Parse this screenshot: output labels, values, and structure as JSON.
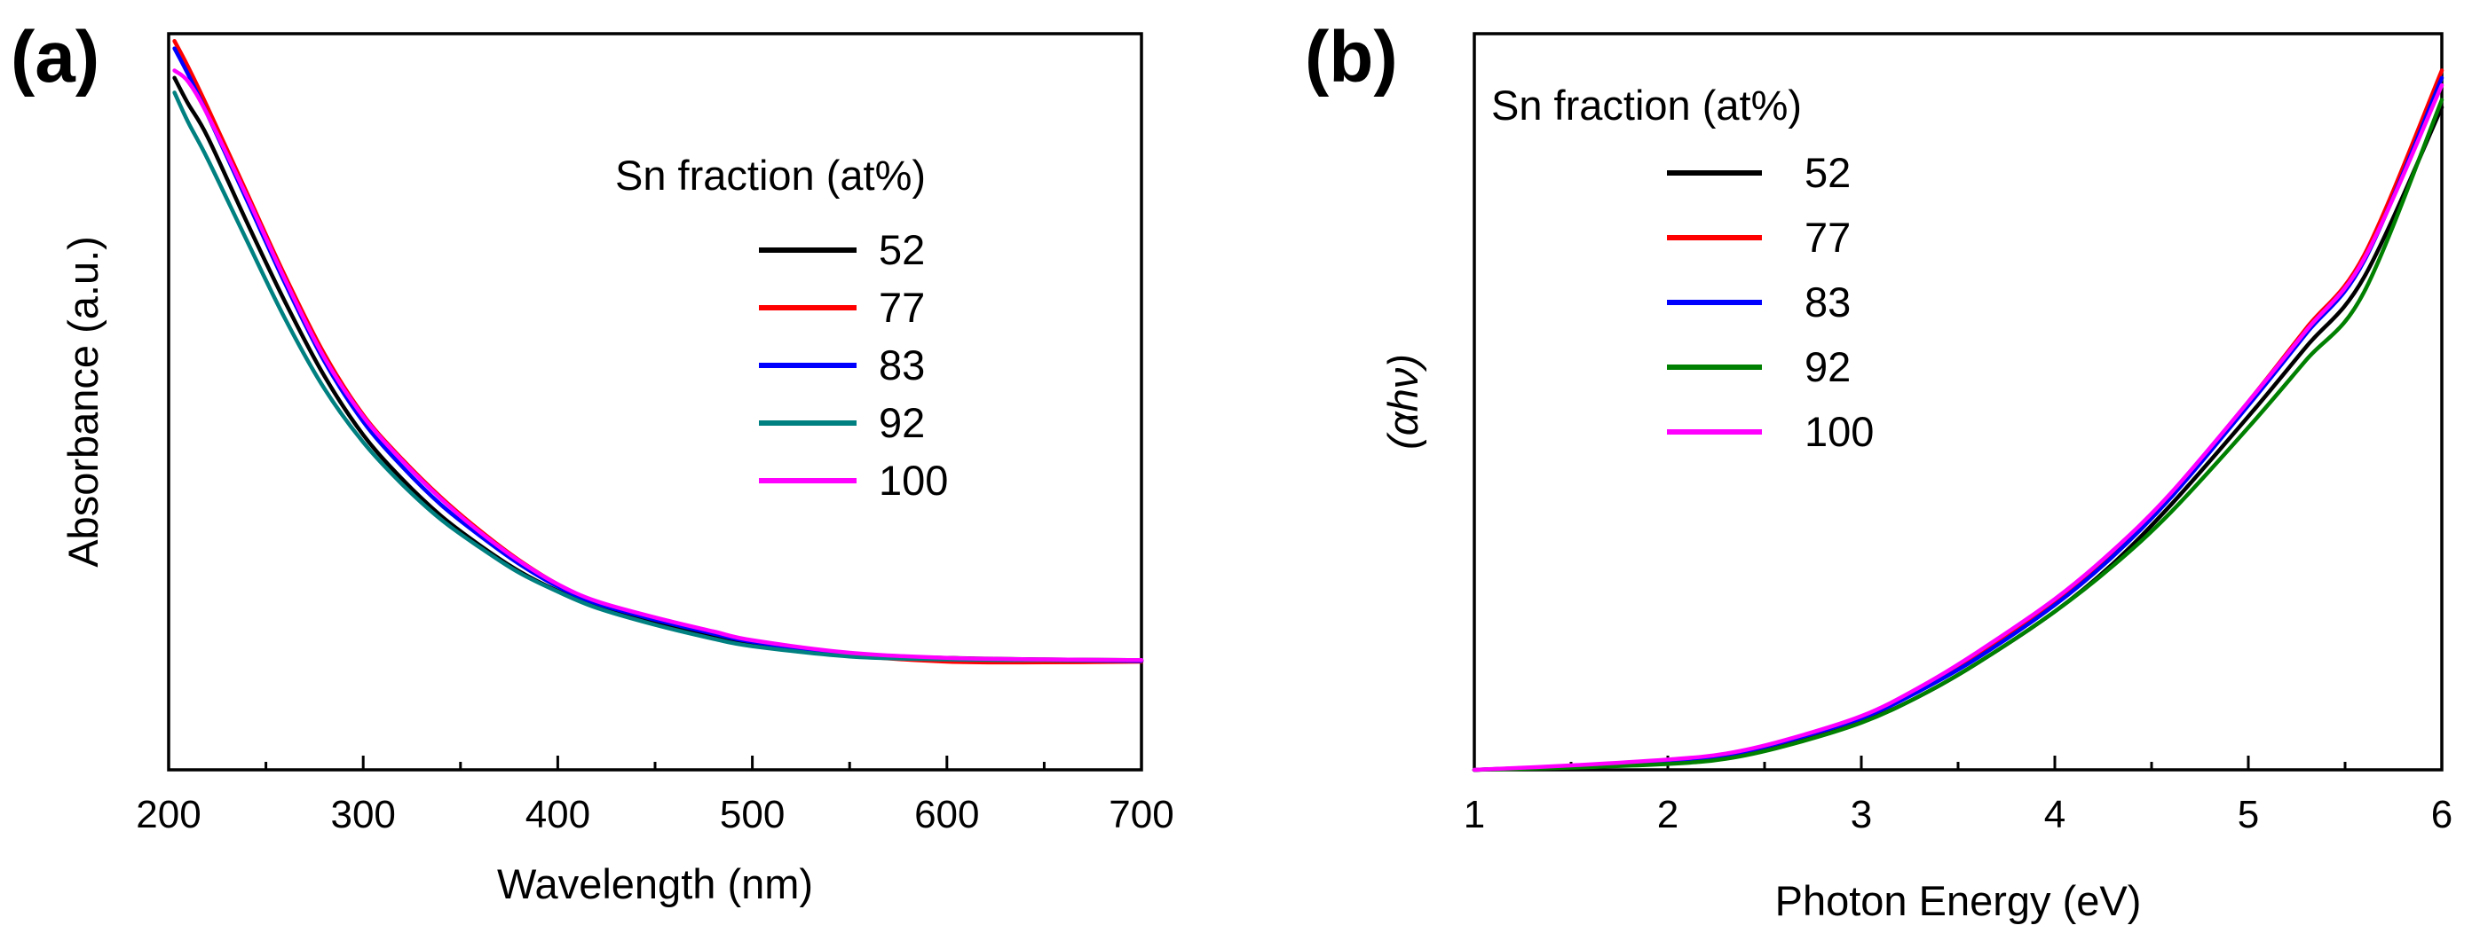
{
  "chart_data": [
    {
      "panel": "(a)",
      "type": "line",
      "xlabel": "Wavelength (nm)",
      "ylabel": "Absorbance (a.u.)",
      "xlim": [
        200,
        700
      ],
      "ylim": [
        0,
        1.0
      ],
      "xticks": [
        200,
        300,
        400,
        500,
        600,
        700
      ],
      "y_tick_labels": false,
      "legend": {
        "title": "Sn fraction (at%)",
        "position": "top-right"
      },
      "series": [
        {
          "name": "52",
          "color": "#000000",
          "x": [
            203,
            210,
            220,
            240,
            260,
            280,
            300,
            320,
            340,
            360,
            380,
            400,
            420,
            450,
            480,
            500,
            550,
            600,
            650,
            700
          ],
          "y": [
            0.94,
            0.905,
            0.86,
            0.745,
            0.635,
            0.535,
            0.455,
            0.395,
            0.345,
            0.305,
            0.27,
            0.243,
            0.222,
            0.2,
            0.182,
            0.172,
            0.157,
            0.152,
            0.15,
            0.149
          ]
        },
        {
          "name": "77",
          "color": "#ff0000",
          "x": [
            203,
            210,
            220,
            240,
            260,
            280,
            300,
            320,
            340,
            360,
            380,
            400,
            420,
            450,
            480,
            500,
            550,
            600,
            650,
            700
          ],
          "y": [
            0.99,
            0.955,
            0.9,
            0.785,
            0.67,
            0.565,
            0.482,
            0.422,
            0.37,
            0.325,
            0.285,
            0.252,
            0.228,
            0.205,
            0.186,
            0.175,
            0.156,
            0.147,
            0.146,
            0.147
          ]
        },
        {
          "name": "83",
          "color": "#0000ff",
          "x": [
            203,
            210,
            220,
            240,
            260,
            280,
            300,
            320,
            340,
            360,
            380,
            400,
            420,
            450,
            480,
            500,
            550,
            600,
            650,
            700
          ],
          "y": [
            0.98,
            0.945,
            0.89,
            0.775,
            0.66,
            0.555,
            0.473,
            0.412,
            0.36,
            0.318,
            0.28,
            0.249,
            0.226,
            0.204,
            0.185,
            0.174,
            0.157,
            0.151,
            0.149,
            0.148
          ]
        },
        {
          "name": "92",
          "color": "#008080",
          "x": [
            203,
            210,
            220,
            240,
            260,
            280,
            300,
            320,
            340,
            360,
            380,
            400,
            420,
            450,
            480,
            500,
            550,
            600,
            650,
            700
          ],
          "y": [
            0.92,
            0.88,
            0.83,
            0.72,
            0.612,
            0.518,
            0.445,
            0.388,
            0.34,
            0.302,
            0.268,
            0.242,
            0.22,
            0.197,
            0.178,
            0.168,
            0.154,
            0.15,
            0.149,
            0.149
          ]
        },
        {
          "name": "100",
          "color": "#ff00ff",
          "x": [
            203,
            210,
            220,
            240,
            260,
            280,
            300,
            320,
            340,
            360,
            380,
            400,
            420,
            450,
            480,
            500,
            550,
            600,
            650,
            700
          ],
          "y": [
            0.95,
            0.935,
            0.89,
            0.78,
            0.665,
            0.56,
            0.48,
            0.42,
            0.368,
            0.323,
            0.284,
            0.252,
            0.229,
            0.207,
            0.188,
            0.176,
            0.159,
            0.152,
            0.15,
            0.149
          ]
        }
      ]
    },
    {
      "panel": "(b)",
      "type": "line",
      "xlabel": "Photon Energy (eV)",
      "ylabel": "(αhν)",
      "xlim": [
        1,
        6
      ],
      "ylim": [
        0,
        1.0
      ],
      "xticks": [
        1,
        2,
        3,
        4,
        5,
        6
      ],
      "y_tick_labels": false,
      "legend": {
        "title": "Sn fraction (at%)",
        "position": "top-left"
      },
      "series": [
        {
          "name": "52",
          "color": "#000000",
          "x": [
            1,
            1.5,
            2,
            2.3,
            2.6,
            3,
            3.3,
            3.6,
            4,
            4.3,
            4.6,
            5,
            5.3,
            5.6,
            6
          ],
          "y": [
            0,
            0.004,
            0.01,
            0.018,
            0.035,
            0.065,
            0.1,
            0.145,
            0.215,
            0.28,
            0.36,
            0.48,
            0.575,
            0.67,
            0.9
          ]
        },
        {
          "name": "77",
          "color": "#ff0000",
          "x": [
            1,
            1.5,
            2,
            2.3,
            2.6,
            3,
            3.3,
            3.6,
            4,
            4.3,
            4.6,
            5,
            5.3,
            5.6,
            6
          ],
          "y": [
            0,
            0.005,
            0.012,
            0.02,
            0.038,
            0.07,
            0.108,
            0.155,
            0.228,
            0.295,
            0.375,
            0.5,
            0.6,
            0.7,
            0.95
          ]
        },
        {
          "name": "83",
          "color": "#0000ff",
          "x": [
            1,
            1.5,
            2,
            2.3,
            2.6,
            3,
            3.3,
            3.6,
            4,
            4.3,
            4.6,
            5,
            5.3,
            5.6,
            6
          ],
          "y": [
            0,
            0.005,
            0.012,
            0.02,
            0.038,
            0.07,
            0.107,
            0.152,
            0.224,
            0.29,
            0.37,
            0.495,
            0.593,
            0.692,
            0.94
          ]
        },
        {
          "name": "92",
          "color": "#008000",
          "x": [
            1,
            1.5,
            2,
            2.3,
            2.6,
            3,
            3.3,
            3.6,
            4,
            4.3,
            4.6,
            5,
            5.3,
            5.6,
            6
          ],
          "y": [
            0,
            0.003,
            0.008,
            0.015,
            0.032,
            0.064,
            0.1,
            0.145,
            0.215,
            0.277,
            0.35,
            0.465,
            0.557,
            0.65,
            0.91
          ]
        },
        {
          "name": "100",
          "color": "#ff00ff",
          "x": [
            1,
            1.5,
            2,
            2.3,
            2.6,
            3,
            3.3,
            3.6,
            4,
            4.3,
            4.6,
            5,
            5.3,
            5.6,
            6
          ],
          "y": [
            0,
            0.006,
            0.014,
            0.022,
            0.04,
            0.073,
            0.112,
            0.16,
            0.232,
            0.298,
            0.376,
            0.5,
            0.597,
            0.695,
            0.93
          ]
        }
      ]
    }
  ]
}
